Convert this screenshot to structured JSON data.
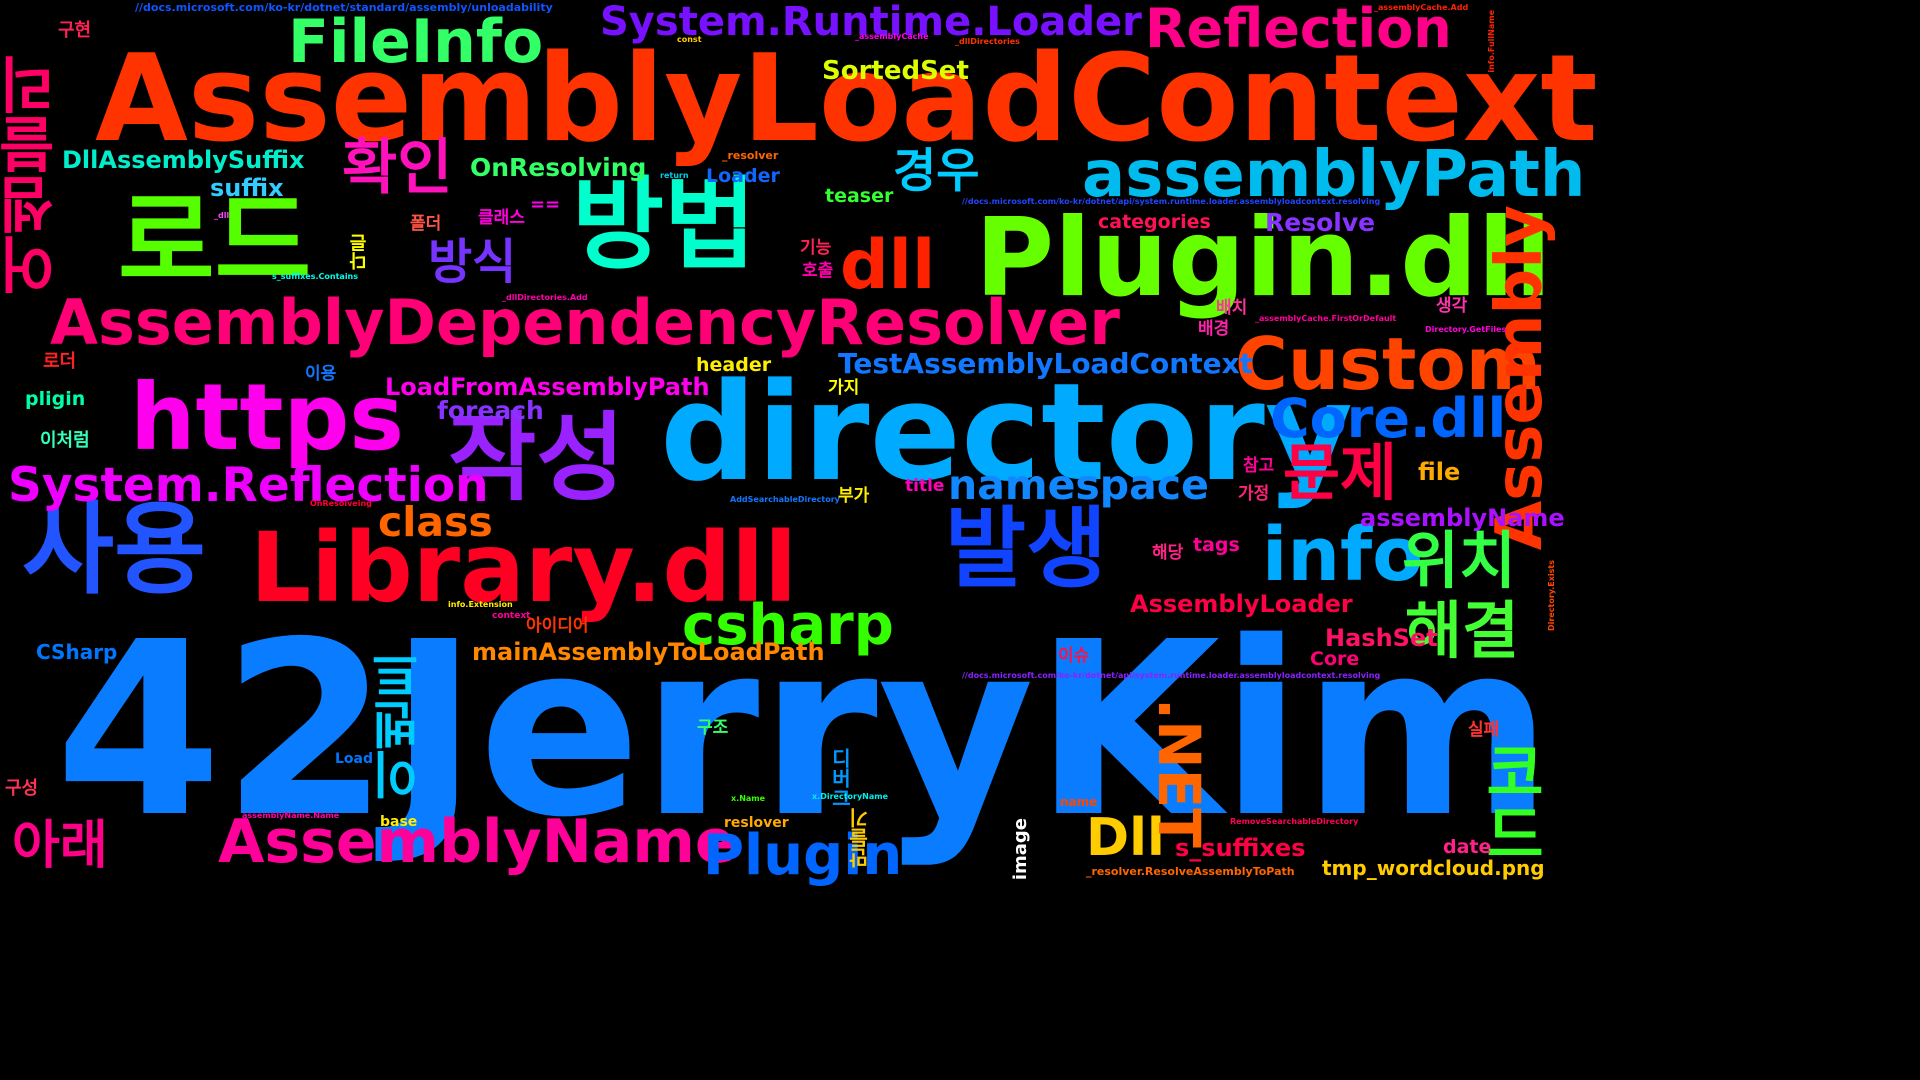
{
  "wordcloud": {
    "background": "#000000",
    "words": [
      {
        "text": "AssemblyLoadContext",
        "color": "#ff3300"
      },
      {
        "text": "42JerryKim",
        "color": "#0a7cff"
      },
      {
        "text": "directory",
        "color": "#00aaff"
      },
      {
        "text": "Plugin.dll",
        "color": "#66ff00"
      },
      {
        "text": "Library.dll",
        "color": "#ff0022"
      },
      {
        "text": "AssemblyDependencyResolver",
        "color": "#ff0077"
      },
      {
        "text": "https",
        "color": "#ff00ee"
      },
      {
        "text": "로드",
        "color": "#55ff00"
      },
      {
        "text": "방법",
        "color": "#00ffcc"
      },
      {
        "text": "사용",
        "color": "#2255ff"
      },
      {
        "text": "작성",
        "color": "#9922ff"
      },
      {
        "text": "발생",
        "color": "#1144ff"
      },
      {
        "text": "어셈블리",
        "color": "#ff0066"
      },
      {
        "text": "FileInfo",
        "color": "#33ff66"
      },
      {
        "text": "System.Runtime.Loader",
        "color": "#7711ff"
      },
      {
        "text": "Reflection",
        "color": "#ff0088"
      },
      {
        "text": "확인",
        "color": "#ff11bb"
      },
      {
        "text": "assemblyPath",
        "color": "#00bbee"
      },
      {
        "text": "dll",
        "color": "#ff2200"
      },
      {
        "text": "Custom",
        "color": "#ff4400"
      },
      {
        "text": "Assembly",
        "color": "#ff3300"
      },
      {
        "text": "info",
        "color": "#00aaff"
      },
      {
        "text": "Core.dll",
        "color": "#0066ff"
      },
      {
        "text": "문제",
        "color": "#ff0044"
      },
      {
        "text": "위치",
        "color": "#33ff44"
      },
      {
        "text": "해결",
        "color": "#44ff33"
      },
      {
        "text": "csharp",
        "color": "#33ff00"
      },
      {
        "text": "System.Reflection",
        "color": "#ee00ff"
      },
      {
        "text": "namespace",
        "color": "#1188ff"
      },
      {
        "text": "class",
        "color": "#ff6600"
      },
      {
        "text": "이벤트",
        "color": "#00ccff"
      },
      {
        "text": "방식",
        "color": "#7733ff"
      },
      {
        "text": "경우",
        "color": "#00ccff"
      },
      {
        "text": "AssemblyName",
        "color": "#ff0099"
      },
      {
        "text": "Plugin",
        "color": "#0066ff"
      },
      {
        "text": "Dll",
        "color": "#ffcc00"
      },
      {
        "text": ".NET",
        "color": "#ff6600"
      },
      {
        "text": "코드",
        "color": "#33ff22"
      },
      {
        "text": "아래",
        "color": "#ff0088"
      },
      {
        "text": "TestAssemblyLoadContext",
        "color": "#1177ff"
      },
      {
        "text": "LoadFromAssemblyPath",
        "color": "#ff00ee"
      },
      {
        "text": "DllAssemblySuffix",
        "color": "#00eecc"
      },
      {
        "text": "OnResolving",
        "color": "#33ff66"
      },
      {
        "text": "SortedSet",
        "color": "#ddff00"
      },
      {
        "text": "suffix",
        "color": "#33ccff"
      },
      {
        "text": "Resolve",
        "color": "#8833ff"
      },
      {
        "text": "foreach",
        "color": "#8833ff"
      },
      {
        "text": "mainAssemblyToLoadPath",
        "color": "#ff8800"
      },
      {
        "text": "assemblyName",
        "color": "#aa11ff"
      },
      {
        "text": "AssemblyLoader",
        "color": "#ff0044"
      },
      {
        "text": "HashSet",
        "color": "#ff1166"
      },
      {
        "text": "s_suffixes",
        "color": "#ff0044"
      },
      {
        "text": "header",
        "color": "#ffee00"
      },
      {
        "text": "file",
        "color": "#ffaa00"
      },
      {
        "text": "tags",
        "color": "#ff0099"
      },
      {
        "text": "Core",
        "color": "#ff0077"
      },
      {
        "text": "CSharp",
        "color": "#0077ff"
      },
      {
        "text": "pligin",
        "color": "#00ffaa"
      },
      {
        "text": "Loader",
        "color": "#1166ff"
      },
      {
        "text": "teaser",
        "color": "#33ff33"
      },
      {
        "text": "categories",
        "color": "#ff1155"
      },
      {
        "text": "date",
        "color": "#ff2288"
      },
      {
        "text": "title",
        "color": "#ff00bb"
      },
      {
        "text": "tmp_wordcloud.png",
        "color": "#ffcc00"
      },
      {
        "text": "구현",
        "color": "#ff2255"
      },
      {
        "text": "폴더",
        "color": "#ff5544"
      },
      {
        "text": "클래스",
        "color": "#ff00dd"
      },
      {
        "text": "==",
        "color": "#ff00ee"
      },
      {
        "text": "다른",
        "color": "#ffff00"
      },
      {
        "text": "기능",
        "color": "#ff2255"
      },
      {
        "text": "호출",
        "color": "#ff00aa"
      },
      {
        "text": "배치",
        "color": "#ff3399"
      },
      {
        "text": "배경",
        "color": "#ff22aa"
      },
      {
        "text": "생각",
        "color": "#ff33aa"
      },
      {
        "text": "로더",
        "color": "#ff2222"
      },
      {
        "text": "이용",
        "color": "#1177ff"
      },
      {
        "text": "가지",
        "color": "#ffff00"
      },
      {
        "text": "이처럼",
        "color": "#33ffbb"
      },
      {
        "text": "참고",
        "color": "#ff0099"
      },
      {
        "text": "가정",
        "color": "#ff2277"
      },
      {
        "text": "부가",
        "color": "#ffee00"
      },
      {
        "text": "해당",
        "color": "#ff2288"
      },
      {
        "text": "아이디어",
        "color": "#ff3300"
      },
      {
        "text": "이슈",
        "color": "#ff1144"
      },
      {
        "text": "구조",
        "color": "#33ff66"
      },
      {
        "text": "디버그",
        "color": "#0099ff"
      },
      {
        "text": "만들기",
        "color": "#ffcc00"
      },
      {
        "text": "실패",
        "color": "#ff3333"
      },
      {
        "text": "구성",
        "color": "#ff3355"
      },
      {
        "text": "image",
        "color": "#ffffff"
      },
      {
        "text": "Load",
        "color": "#0077ff"
      },
      {
        "text": "base",
        "color": "#ffee00"
      },
      {
        "text": "reslover",
        "color": "#ffaa00"
      },
      {
        "text": "name",
        "color": "#ff4400"
      },
      {
        "text": "context",
        "color": "#ff0099"
      },
      {
        "text": "_resolver",
        "color": "#ff6600"
      },
      {
        "text": "return",
        "color": "#00ccee"
      },
      {
        "text": "const",
        "color": "#ffcc00"
      },
      {
        "text": "_dll",
        "color": "#ff44ff"
      },
      {
        "text": "OnResolveing",
        "color": "#ff0033"
      },
      {
        "text": "AddSearchableDirectory",
        "color": "#1177ff"
      },
      {
        "text": "info.Extension",
        "color": "#ffee00"
      },
      {
        "text": "x.Name",
        "color": "#33ff00"
      },
      {
        "text": "x.DirectoryName",
        "color": "#00eeee"
      },
      {
        "text": "assemblyName.Name",
        "color": "#ff00aa"
      },
      {
        "text": "_resolver.ResolveAssemblyToPath",
        "color": "#ff6600"
      },
      {
        "text": "RemoveSearchableDirectory",
        "color": "#ff0055"
      },
      {
        "text": "//docs.microsoft.com/ko-kr/dotnet/standard/assembly/unloadability",
        "color": "#1155ff"
      },
      {
        "text": "//docs.microsoft.com/ko-kr/dotnet/api/system.runtime.loader.assemblyloadcontext.resolving",
        "color": "#2244ff"
      },
      {
        "text": "//docs.microsoft.com/ko-kr/dotnet/api/system.runtime.loader.assemblyloadcontext.resolving",
        "color": "#8822ff"
      },
      {
        "text": "_assemblyCache.Add",
        "color": "#ff2200"
      },
      {
        "text": "_assemblyCache",
        "color": "#ff00ee"
      },
      {
        "text": "_dllDirectories",
        "color": "#ff3300"
      },
      {
        "text": "_dllDirectories.Add",
        "color": "#ff00aa"
      },
      {
        "text": "_assemblyCache.FirstOrDefault",
        "color": "#ff0099"
      },
      {
        "text": "Directory.GetFiles",
        "color": "#ff00dd"
      },
      {
        "text": "s_suffixes.Contains",
        "color": "#00ffee"
      },
      {
        "text": "info.FullName",
        "color": "#ff2200"
      },
      {
        "text": "Directory.Exists",
        "color": "#ff4400"
      }
    ]
  }
}
